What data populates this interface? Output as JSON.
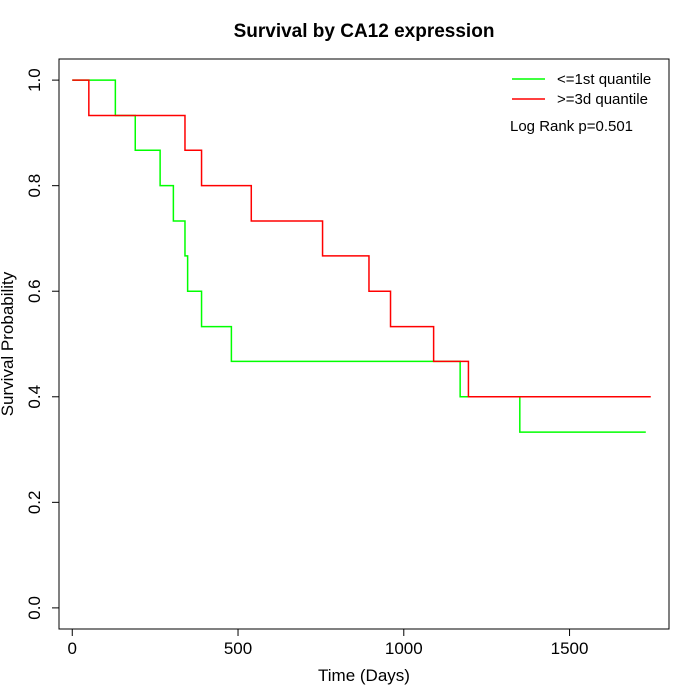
{
  "chart_data": {
    "type": "line",
    "title": "Survival by CA12 expression",
    "xlabel": "Time (Days)",
    "ylabel": "Survival Probability",
    "xlim": [
      -40,
      1800
    ],
    "ylim": [
      -0.04,
      1.04
    ],
    "xticks": [
      0,
      500,
      1000,
      1500
    ],
    "yticks": [
      0.0,
      0.2,
      0.4,
      0.6,
      0.8,
      1.0
    ],
    "xtick_labels": [
      "0",
      "500",
      "1000",
      "1500"
    ],
    "ytick_labels": [
      "0.0",
      "0.2",
      "0.4",
      "0.6",
      "0.8",
      "1.0"
    ],
    "grid": false,
    "legend_position": "top-right",
    "annotation": "Log Rank p=0.501",
    "series": [
      {
        "name": "<=1st quantile",
        "color": "#00ff00",
        "step": true,
        "x": [
          0,
          130,
          190,
          265,
          305,
          340,
          348,
          390,
          480,
          1170,
          1195,
          1350,
          1730
        ],
        "y": [
          1.0,
          0.933,
          0.867,
          0.8,
          0.733,
          0.667,
          0.6,
          0.533,
          0.467,
          0.4,
          0.4,
          0.333,
          0.333
        ]
      },
      {
        "name": ">=3d quantile",
        "color": "#ff0000",
        "step": true,
        "x": [
          0,
          50,
          340,
          390,
          540,
          755,
          895,
          960,
          1090,
          1195,
          1745
        ],
        "y": [
          1.0,
          0.933,
          0.867,
          0.8,
          0.733,
          0.667,
          0.6,
          0.533,
          0.467,
          0.4,
          0.4
        ]
      }
    ]
  }
}
